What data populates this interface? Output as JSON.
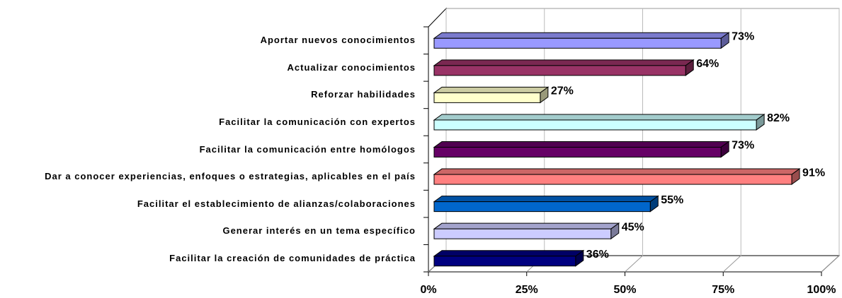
{
  "chart_data": {
    "type": "bar3d_horizontal",
    "categories": [
      "Aportar nuevos conocimientos",
      "Actualizar conocimientos",
      "Reforzar habilidades",
      "Facilitar la comunicación con expertos",
      "Facilitar la comunicación entre homólogos",
      "Dar a conocer experiencias, enfoques o estrategias, aplicables en el país",
      "Facilitar el establecimiento de alianzas/colaboraciones",
      "Generar interés en un tema específico",
      "Facilitar la creación de comunidades de práctica"
    ],
    "values": [
      73,
      64,
      27,
      82,
      73,
      91,
      55,
      45,
      36
    ],
    "value_labels": [
      "73%",
      "64%",
      "27%",
      "82%",
      "73%",
      "91%",
      "55%",
      "45%",
      "36%"
    ],
    "colors": [
      "#9999ff",
      "#993366",
      "#ffffcc",
      "#ccffff",
      "#660066",
      "#ff8080",
      "#0066cc",
      "#ccccff",
      "#000080"
    ],
    "xlim": [
      0,
      100
    ],
    "xticks": [
      {
        "value": 0,
        "label": "0%"
      },
      {
        "value": 25,
        "label": "25%"
      },
      {
        "value": 50,
        "label": "50%"
      },
      {
        "value": 75,
        "label": "75%"
      },
      {
        "value": 100,
        "label": "100%"
      }
    ],
    "grid": true
  }
}
